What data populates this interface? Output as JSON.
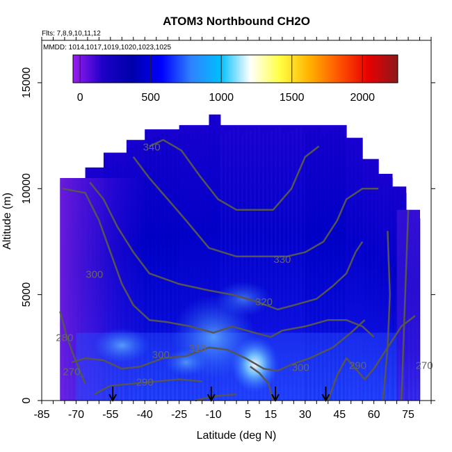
{
  "title": "ATOM3 Northbound CH2O",
  "subtitle_flights": "Flts: 7,8,9,10,11,12",
  "subtitle_dates": "MMDD: 1014,1017,1019,1020,1023,1025",
  "chart_data": {
    "type": "heatmap",
    "title": "ATOM3 Northbound CH2O",
    "xlabel": "Latitude (deg N)",
    "ylabel": "Altitude (m)",
    "xlim": [
      -85,
      85
    ],
    "ylim": [
      0,
      17000
    ],
    "x_ticks": [
      "-85",
      "-70",
      "-55",
      "-40",
      "-25",
      "-10",
      "5",
      "15",
      "30",
      "45",
      "60",
      "75"
    ],
    "y_ticks": [
      "0",
      "5000",
      "10000",
      "15000"
    ],
    "colorbar": {
      "range": [
        -50,
        2250
      ],
      "ticks": [
        "0",
        "500",
        "1000",
        "1500",
        "2000"
      ],
      "colors": [
        "#9b1cf0",
        "#1d00c8",
        "#0000aa",
        "#0000ff",
        "#2f82ff",
        "#00bfff",
        "#ffffff",
        "#ffff44",
        "#ffb300",
        "#ff5500",
        "#e80000",
        "#8b1a1a"
      ]
    },
    "contour_labels": [
      {
        "text": "340",
        "lat": -37,
        "alt": 11800
      },
      {
        "text": "330",
        "lat": 20,
        "alt": 6500
      },
      {
        "text": "320",
        "lat": 12,
        "alt": 4500
      },
      {
        "text": "310",
        "lat": -17,
        "alt": 2300
      },
      {
        "text": "300",
        "lat": -62,
        "alt": 5800
      },
      {
        "text": "300",
        "lat": -33,
        "alt": 2000
      },
      {
        "text": "300",
        "lat": 28,
        "alt": 1400
      },
      {
        "text": "290",
        "lat": -40,
        "alt": 700
      },
      {
        "text": "290",
        "lat": 53,
        "alt": 1500
      },
      {
        "text": "280",
        "lat": -75,
        "alt": 2800
      },
      {
        "text": "270",
        "lat": -72,
        "alt": 1200
      },
      {
        "text": "270",
        "lat": 82,
        "alt": 1500
      }
    ],
    "profile_markers_lat": [
      -54,
      -11,
      17,
      39
    ],
    "coverage": [
      {
        "lat0": -77,
        "lat1": -66,
        "top": 10500
      },
      {
        "lat0": -66,
        "lat1": -58,
        "top": 11000
      },
      {
        "lat0": -58,
        "lat1": -48,
        "top": 11700
      },
      {
        "lat0": -48,
        "lat1": -40,
        "top": 12300
      },
      {
        "lat0": -40,
        "lat1": -25,
        "top": 12800
      },
      {
        "lat0": -25,
        "lat1": -12,
        "top": 13000
      },
      {
        "lat0": -12,
        "lat1": -7,
        "top": 13500
      },
      {
        "lat0": -7,
        "lat1": 30,
        "top": 13000
      },
      {
        "lat0": 30,
        "lat1": 48,
        "top": 13000
      },
      {
        "lat0": 48,
        "lat1": 55,
        "top": 12400
      },
      {
        "lat0": 55,
        "lat1": 62,
        "top": 11400
      },
      {
        "lat0": 62,
        "lat1": 68,
        "top": 10700
      },
      {
        "lat0": 68,
        "lat1": 74,
        "top": 10100
      },
      {
        "lat0": 74,
        "lat1": 80,
        "top": 9000
      }
    ]
  }
}
